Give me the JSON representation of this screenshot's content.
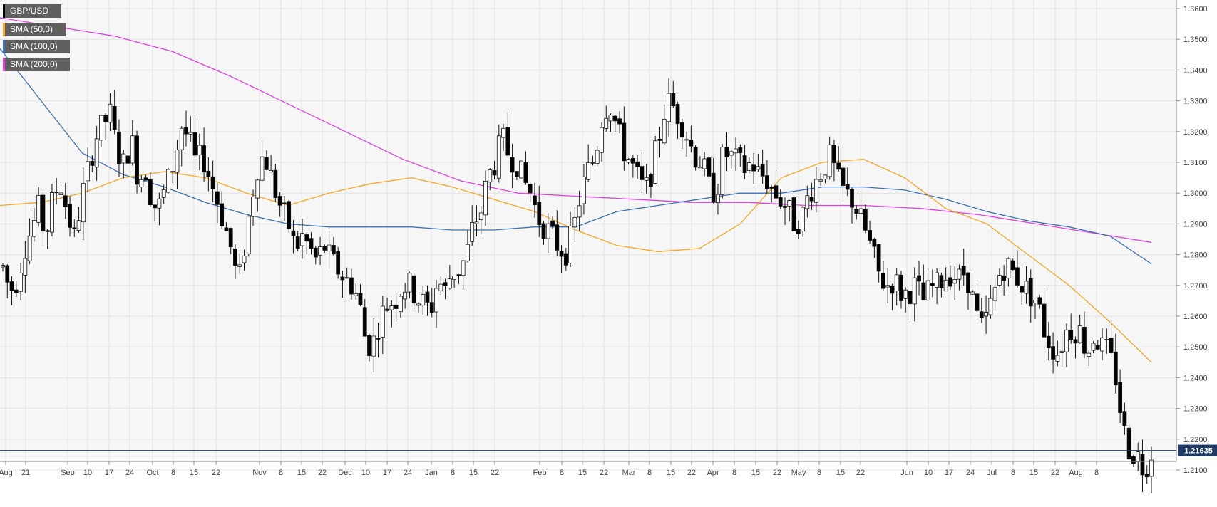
{
  "chart_data": {
    "type": "candlestick",
    "symbol": "GBP/USD",
    "last_price": 1.21635,
    "last_price_label": "1.21635",
    "ylim": [
      1.2,
      1.365
    ],
    "y_ticks": [
      "1.2100",
      "1.2200",
      "1.2300",
      "1.2400",
      "1.2500",
      "1.2600",
      "1.2700",
      "1.2800",
      "1.2900",
      "1.3000",
      "1.3100",
      "1.3200",
      "1.3300",
      "1.3400",
      "1.3500",
      "1.3600"
    ],
    "x_ticks": [
      "Aug",
      "21",
      "Sep",
      "10",
      "17",
      "24",
      "Oct",
      "8",
      "15",
      "22",
      "Nov",
      "8",
      "15",
      "22",
      "Dec",
      "10",
      "17",
      "24",
      "Jan",
      "8",
      "15",
      "22",
      "Feb",
      "8",
      "15",
      "22",
      "Mar",
      "8",
      "15",
      "22",
      "Apr",
      "8",
      "15",
      "22",
      "May",
      "8",
      "15",
      "22",
      "Jun",
      "10",
      "17",
      "24",
      "Jul",
      "8",
      "15",
      "22",
      "Aug",
      "8"
    ],
    "grid": true,
    "legend_position": "top-left",
    "legend": [
      {
        "label": "GBP/USD",
        "color": "#000000"
      },
      {
        "label": "SMA (50,0)",
        "color": "#f5a623"
      },
      {
        "label": "SMA (100,0)",
        "color": "#3d6fb4"
      },
      {
        "label": "SMA (200,0)",
        "color": "#e040e0"
      }
    ],
    "close_path": [
      1.276,
      1.268,
      1.272,
      1.282,
      1.288,
      1.295,
      1.286,
      1.298,
      1.304,
      1.294,
      1.285,
      1.298,
      1.308,
      1.318,
      1.322,
      1.326,
      1.314,
      1.309,
      1.318,
      1.304,
      1.308,
      1.296,
      1.296,
      1.303,
      1.31,
      1.322,
      1.318,
      1.31,
      1.312,
      1.305,
      1.298,
      1.29,
      1.282,
      1.27,
      1.285,
      1.3,
      1.312,
      1.31,
      1.302,
      1.295,
      1.29,
      1.282,
      1.286,
      1.282,
      1.278,
      1.283,
      1.278,
      1.275,
      1.272,
      1.27,
      1.264,
      1.25,
      1.252,
      1.26,
      1.264,
      1.265,
      1.27,
      1.27,
      1.266,
      1.264,
      1.262,
      1.272,
      1.268,
      1.275,
      1.275,
      1.28,
      1.29,
      1.294,
      1.305,
      1.31,
      1.318,
      1.312,
      1.31,
      1.304,
      1.3,
      1.292,
      1.289,
      1.286,
      1.282,
      1.281,
      1.288,
      1.3,
      1.307,
      1.312,
      1.325,
      1.33,
      1.322,
      1.314,
      1.31,
      1.305,
      1.3,
      1.308,
      1.318,
      1.33,
      1.328,
      1.324,
      1.318,
      1.312,
      1.31,
      1.302,
      1.3,
      1.313,
      1.312,
      1.31,
      1.308,
      1.31,
      1.306,
      1.305,
      1.3,
      1.298,
      1.295,
      1.29,
      1.292,
      1.3,
      1.304,
      1.308,
      1.312,
      1.304,
      1.3,
      1.298,
      1.293,
      1.287,
      1.28,
      1.272,
      1.27,
      1.272,
      1.267,
      1.268,
      1.27,
      1.265,
      1.269,
      1.27,
      1.273,
      1.274,
      1.272,
      1.275,
      1.265,
      1.255,
      1.26,
      1.268,
      1.276,
      1.276,
      1.273,
      1.27,
      1.267,
      1.265,
      1.255,
      1.25,
      1.248,
      1.255,
      1.256,
      1.255,
      1.248,
      1.254,
      1.25,
      1.248,
      1.24,
      1.224,
      1.216,
      1.215,
      1.21,
      1.216
    ],
    "sma_50": [
      1.296,
      1.297,
      1.3,
      1.305,
      1.307,
      1.305,
      1.3,
      1.296,
      1.3,
      1.303,
      1.305,
      1.302,
      1.298,
      1.294,
      1.288,
      1.283,
      1.281,
      1.282,
      1.29,
      1.305,
      1.31,
      1.311,
      1.305,
      1.295,
      1.29,
      1.28,
      1.27,
      1.258,
      1.245
    ],
    "sma_100": [
      1.347,
      1.33,
      1.313,
      1.306,
      1.302,
      1.297,
      1.293,
      1.29,
      1.289,
      1.289,
      1.289,
      1.288,
      1.288,
      1.289,
      1.289,
      1.294,
      1.296,
      1.298,
      1.3,
      1.3,
      1.302,
      1.302,
      1.301,
      1.298,
      1.294,
      1.291,
      1.289,
      1.286,
      1.277
    ],
    "sma_200": [
      1.357,
      1.354,
      1.351,
      1.346,
      1.338,
      1.329,
      1.32,
      1.311,
      1.304,
      1.3,
      1.299,
      1.298,
      1.297,
      1.297,
      1.296,
      1.296,
      1.295,
      1.293,
      1.29,
      1.287,
      1.284
    ]
  }
}
